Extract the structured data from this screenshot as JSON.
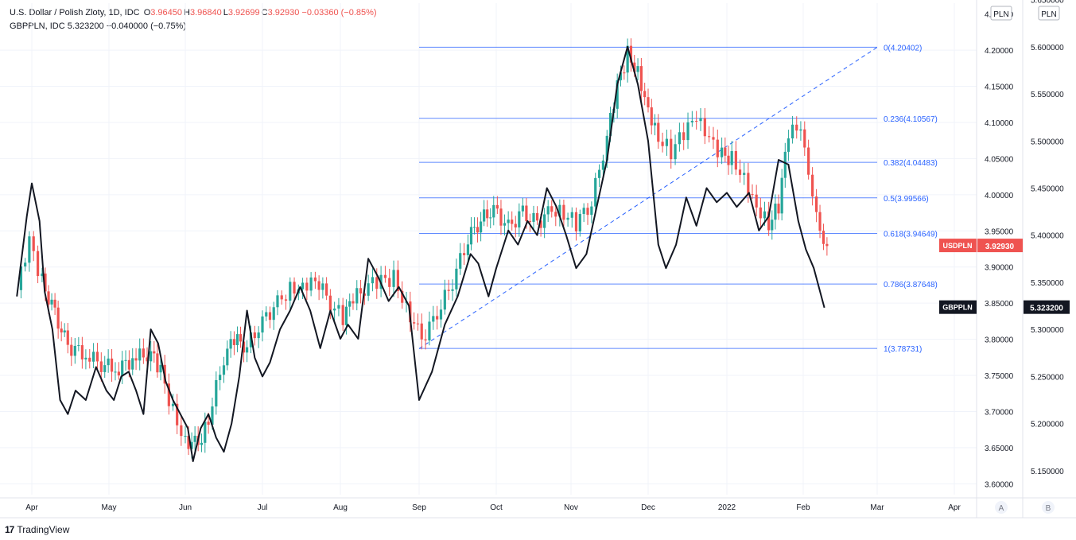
{
  "header": {
    "usdpln_name": "U.S. Dollar / Polish Zloty, 1D, IDC",
    "usdpln_ohlc": [
      {
        "key": "O",
        "value": "3.96450"
      },
      {
        "key": "H",
        "value": "3.96840"
      },
      {
        "key": "L",
        "value": "3.92699"
      },
      {
        "key": "C",
        "value": "3.92930"
      }
    ],
    "usdpln_change": "−0.03360 (−0.85%)",
    "gbppln_name": "GBPPLN, IDC",
    "gbppln_value": "5.323200",
    "gbppln_change": "−0.040000 (−0.75%)"
  },
  "scale_labels": {
    "left": "PLN",
    "right": "PLN"
  },
  "scale_buttons": {
    "a": "A",
    "b": "B"
  },
  "badges": {
    "usdpln_symbol": "USDPLN",
    "usdpln_price": "3.92930",
    "gbppln_symbol": "GBPPLN",
    "gbppln_price": "5.323200"
  },
  "branding": "TradingView",
  "colors": {
    "up": "#26a69a",
    "down": "#ef5350",
    "gbp_line": "#131722",
    "fib": "#2962ff",
    "badge_red": "#ef5350",
    "badge_black": "#131722"
  },
  "chart_data": {
    "type": "line",
    "x_ticks": [
      "Apr",
      "May",
      "Jun",
      "Jul",
      "Aug",
      "Sep",
      "Oct",
      "Nov",
      "Dec",
      "2022",
      "Feb",
      "Mar",
      "Apr"
    ],
    "y_left_ticks": [
      "4.20000",
      "4.15000",
      "4.10000",
      "4.05000",
      "4.00000",
      "3.95000",
      "3.90000",
      "3.85000",
      "3.80000",
      "3.75000",
      "3.70000",
      "3.65000",
      "3.60000"
    ],
    "y_left_range": [
      3.585,
      4.265
    ],
    "y_right_ticks": [
      "5.600000",
      "5.550000",
      "5.500000",
      "5.450000",
      "5.400000",
      "5.350000",
      "5.300000",
      "5.250000",
      "5.200000",
      "5.150000"
    ],
    "y_right_range": [
      5.1245,
      5.6463
    ],
    "fib_levels": [
      {
        "label": "0(4.20402)",
        "value": 4.20402
      },
      {
        "label": "0.236(4.10567)",
        "value": 4.10567
      },
      {
        "label": "0.382(4.04483)",
        "value": 4.04483
      },
      {
        "label": "0.5(3.99566)",
        "value": 3.99566
      },
      {
        "label": "0.618(3.94649)",
        "value": 3.94649
      },
      {
        "label": "0.786(3.87648)",
        "value": 3.87648
      },
      {
        "label": "1(3.78731)",
        "value": 3.78731
      }
    ],
    "fib_start": "Sep 1",
    "trend_line": [
      {
        "x": "Sep 1",
        "y": 3.787
      },
      {
        "x": "Mar 1",
        "y": 4.204
      }
    ],
    "series": [
      {
        "name": "USDPLN",
        "style": "candles",
        "points": [
          [
            "Mar 26",
            3.868
          ],
          [
            "Mar 31",
            3.935
          ],
          [
            "Apr 5",
            3.88
          ],
          [
            "Apr 10",
            3.835
          ],
          [
            "Apr 15",
            3.79
          ],
          [
            "Apr 22",
            3.78
          ],
          [
            "Apr 28",
            3.765
          ],
          [
            "May 5",
            3.76
          ],
          [
            "May 12",
            3.775
          ],
          [
            "May 18",
            3.78
          ],
          [
            "May 22",
            3.755
          ],
          [
            "May 27",
            3.7
          ],
          [
            "Jun 1",
            3.66
          ],
          [
            "Jun 6",
            3.655
          ],
          [
            "Jun 10",
            3.69
          ],
          [
            "Jun 16",
            3.775
          ],
          [
            "Jun 20",
            3.8
          ],
          [
            "Jun 25",
            3.79
          ],
          [
            "Jul 1",
            3.825
          ],
          [
            "Jul 7",
            3.85
          ],
          [
            "Jul 12",
            3.87
          ],
          [
            "Jul 17",
            3.875
          ],
          [
            "Jul 22",
            3.885
          ],
          [
            "Jul 28",
            3.85
          ],
          [
            "Aug 2",
            3.83
          ],
          [
            "Aug 6",
            3.855
          ],
          [
            "Aug 12",
            3.875
          ],
          [
            "Aug 17",
            3.88
          ],
          [
            "Aug 22",
            3.885
          ],
          [
            "Aug 27",
            3.845
          ],
          [
            "Sep 2",
            3.8
          ],
          [
            "Sep 8",
            3.835
          ],
          [
            "Sep 14",
            3.88
          ],
          [
            "Sep 20",
            3.94
          ],
          [
            "Sep 25",
            3.965
          ],
          [
            "Sep 30",
            3.98
          ],
          [
            "Oct 6",
            3.955
          ],
          [
            "Oct 12",
            3.975
          ],
          [
            "Oct 18",
            3.96
          ],
          [
            "Oct 24",
            3.98
          ],
          [
            "Oct 29",
            3.975
          ],
          [
            "Nov 3",
            3.96
          ],
          [
            "Nov 9",
            3.99
          ],
          [
            "Nov 15",
            4.08
          ],
          [
            "Nov 19",
            4.15
          ],
          [
            "Nov 23",
            4.195
          ],
          [
            "Nov 27",
            4.17
          ],
          [
            "Dec 1",
            4.12
          ],
          [
            "Dec 5",
            4.08
          ],
          [
            "Dec 10",
            4.06
          ],
          [
            "Dec 15",
            4.085
          ],
          [
            "Dec 20",
            4.105
          ],
          [
            "Dec 25",
            4.075
          ],
          [
            "Dec 30",
            4.055
          ],
          [
            "Jan 3",
            4.05
          ],
          [
            "Jan 8",
            4.025
          ],
          [
            "Jan 13",
            3.985
          ],
          [
            "Jan 18",
            3.96
          ],
          [
            "Jan 22",
            3.985
          ],
          [
            "Jan 26",
            4.085
          ],
          [
            "Jan 31",
            4.09
          ],
          [
            "Feb 3",
            4.02
          ],
          [
            "Feb 6",
            3.965
          ],
          [
            "Feb 10",
            3.929
          ]
        ]
      },
      {
        "name": "GBPPLN",
        "style": "line",
        "points": [
          [
            "Mar 26",
            5.335
          ],
          [
            "Mar 30",
            5.42
          ],
          [
            "Apr 1",
            5.455
          ],
          [
            "Apr 4",
            5.415
          ],
          [
            "Apr 6",
            5.34
          ],
          [
            "Apr 9",
            5.3
          ],
          [
            "Apr 12",
            5.225
          ],
          [
            "Apr 15",
            5.21
          ],
          [
            "Apr 18",
            5.235
          ],
          [
            "Apr 22",
            5.225
          ],
          [
            "Apr 26",
            5.26
          ],
          [
            "Apr 30",
            5.235
          ],
          [
            "May 3",
            5.225
          ],
          [
            "May 6",
            5.25
          ],
          [
            "May 9",
            5.255
          ],
          [
            "May 12",
            5.235
          ],
          [
            "May 15",
            5.21
          ],
          [
            "May 18",
            5.3
          ],
          [
            "May 21",
            5.285
          ],
          [
            "May 24",
            5.245
          ],
          [
            "May 27",
            5.225
          ],
          [
            "May 30",
            5.21
          ],
          [
            "Jun 2",
            5.195
          ],
          [
            "Jun 4",
            5.16
          ],
          [
            "Jun 7",
            5.195
          ],
          [
            "Jun 10",
            5.21
          ],
          [
            "Jun 13",
            5.185
          ],
          [
            "Jun 16",
            5.17
          ],
          [
            "Jun 19",
            5.2
          ],
          [
            "Jun 22",
            5.25
          ],
          [
            "Jun 25",
            5.32
          ],
          [
            "Jun 28",
            5.27
          ],
          [
            "Jul 1",
            5.25
          ],
          [
            "Jul 4",
            5.265
          ],
          [
            "Jul 8",
            5.3
          ],
          [
            "Jul 12",
            5.32
          ],
          [
            "Jul 16",
            5.345
          ],
          [
            "Jul 20",
            5.32
          ],
          [
            "Jul 24",
            5.28
          ],
          [
            "Jul 28",
            5.32
          ],
          [
            "Aug 1",
            5.29
          ],
          [
            "Aug 4",
            5.305
          ],
          [
            "Aug 8",
            5.29
          ],
          [
            "Aug 12",
            5.375
          ],
          [
            "Aug 16",
            5.355
          ],
          [
            "Aug 20",
            5.33
          ],
          [
            "Aug 24",
            5.345
          ],
          [
            "Aug 28",
            5.325
          ],
          [
            "Sep 1",
            5.225
          ],
          [
            "Sep 6",
            5.255
          ],
          [
            "Sep 11",
            5.305
          ],
          [
            "Sep 16",
            5.335
          ],
          [
            "Sep 21",
            5.38
          ],
          [
            "Sep 24",
            5.37
          ],
          [
            "Sep 28",
            5.335
          ],
          [
            "Oct 1",
            5.365
          ],
          [
            "Oct 6",
            5.405
          ],
          [
            "Oct 10",
            5.39
          ],
          [
            "Oct 14",
            5.415
          ],
          [
            "Oct 18",
            5.4
          ],
          [
            "Oct 22",
            5.45
          ],
          [
            "Oct 26",
            5.43
          ],
          [
            "Oct 30",
            5.4
          ],
          [
            "Nov 3",
            5.365
          ],
          [
            "Nov 7",
            5.38
          ],
          [
            "Nov 11",
            5.43
          ],
          [
            "Nov 15",
            5.48
          ],
          [
            "Nov 19",
            5.56
          ],
          [
            "Nov 23",
            5.6
          ],
          [
            "Nov 27",
            5.56
          ],
          [
            "Dec 1",
            5.5
          ],
          [
            "Dec 5",
            5.39
          ],
          [
            "Dec 8",
            5.365
          ],
          [
            "Dec 12",
            5.39
          ],
          [
            "Dec 16",
            5.44
          ],
          [
            "Dec 20",
            5.41
          ],
          [
            "Dec 24",
            5.45
          ],
          [
            "Dec 28",
            5.435
          ],
          [
            "Jan 1",
            5.445
          ],
          [
            "Jan 5",
            5.43
          ],
          [
            "Jan 10",
            5.445
          ],
          [
            "Jan 14",
            5.405
          ],
          [
            "Jan 18",
            5.42
          ],
          [
            "Jan 22",
            5.48
          ],
          [
            "Jan 26",
            5.475
          ],
          [
            "Jan 30",
            5.415
          ],
          [
            "Feb 2",
            5.385
          ],
          [
            "Feb 5",
            5.365
          ],
          [
            "Feb 9",
            5.323
          ]
        ]
      }
    ]
  }
}
